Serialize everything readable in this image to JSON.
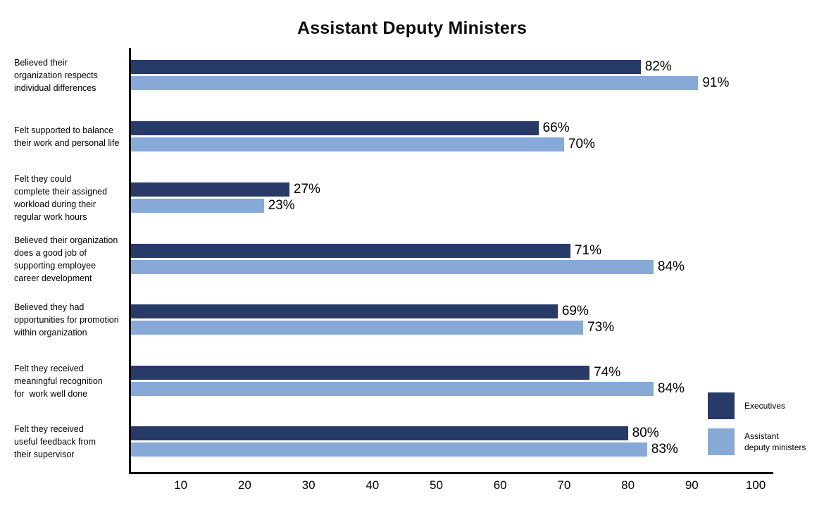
{
  "chart_data": {
    "type": "bar",
    "orientation": "horizontal",
    "title": "Assistant Deputy Ministers",
    "value_suffix": "%",
    "categories": [
      "Believed their\norganization respects\nindividual differences",
      "Felt supported to balance\ntheir work and personal life",
      "Felt they could\ncomplete their assigned\nworkload during their\nregular work hours",
      "Believed their organization\ndoes a good job of\nsupporting employee\ncareer development",
      "Believed they had\nopportunities for promotion\nwithin organization",
      "Felt they received\nmeaningful recognition\nfor  work well done",
      "Felt they received\nuseful feedback from\ntheir supervisor"
    ],
    "series": [
      {
        "name": "Executives",
        "color": "#283A68",
        "values": [
          82,
          66,
          27,
          71,
          69,
          74,
          80
        ]
      },
      {
        "name": "Assistant deputy ministers",
        "color": "#87A9D8",
        "values": [
          91,
          70,
          23,
          84,
          73,
          84,
          83
        ]
      }
    ],
    "x_ticks": [
      10,
      20,
      30,
      40,
      50,
      60,
      70,
      80,
      90,
      100
    ],
    "xlim": [
      0,
      100
    ],
    "grid": false,
    "legend_position": "bottom-right"
  },
  "legend": {
    "items": [
      {
        "label": "Executives"
      },
      {
        "label": "Assistant\ndeputy ministers"
      }
    ]
  }
}
